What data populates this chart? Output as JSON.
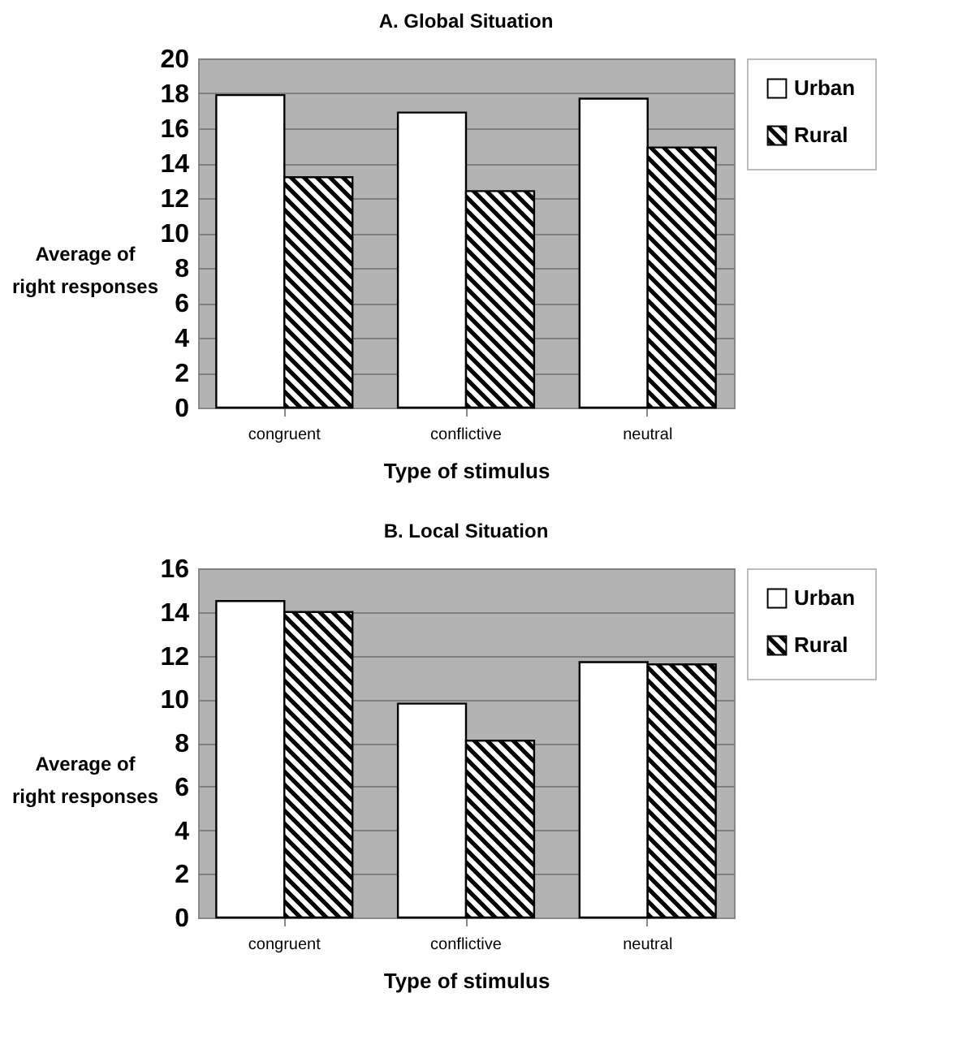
{
  "chart_data": [
    {
      "type": "bar",
      "title": "A. Global Situation",
      "xlabel": "Type of stimulus",
      "ylabel": "Average of\nright responses",
      "categories": [
        "congruent",
        "conflictive",
        "neutral"
      ],
      "series": [
        {
          "name": "Urban",
          "color": "#ffffff",
          "values": [
            17.9,
            16.9,
            17.7
          ]
        },
        {
          "name": "Rural",
          "color": "#000000",
          "values": [
            13.2,
            12.4,
            14.9
          ]
        }
      ],
      "ylim": [
        0,
        20
      ],
      "yticks": [
        0,
        2,
        4,
        6,
        8,
        10,
        12,
        14,
        16,
        18,
        20
      ],
      "grid": "y",
      "legend": "right"
    },
    {
      "type": "bar",
      "title": "B. Local Situation",
      "xlabel": "Type of stimulus",
      "ylabel": "Average of\nright responses",
      "categories": [
        "congruent",
        "conflictive",
        "neutral"
      ],
      "series": [
        {
          "name": "Urban",
          "color": "#ffffff",
          "values": [
            14.5,
            9.8,
            11.7
          ]
        },
        {
          "name": "Rural",
          "color": "#000000",
          "values": [
            14.0,
            8.1,
            11.6
          ]
        }
      ],
      "ylim": [
        0,
        16
      ],
      "yticks": [
        0,
        2,
        4,
        6,
        8,
        10,
        12,
        14,
        16
      ],
      "grid": "y",
      "legend": "right"
    }
  ]
}
